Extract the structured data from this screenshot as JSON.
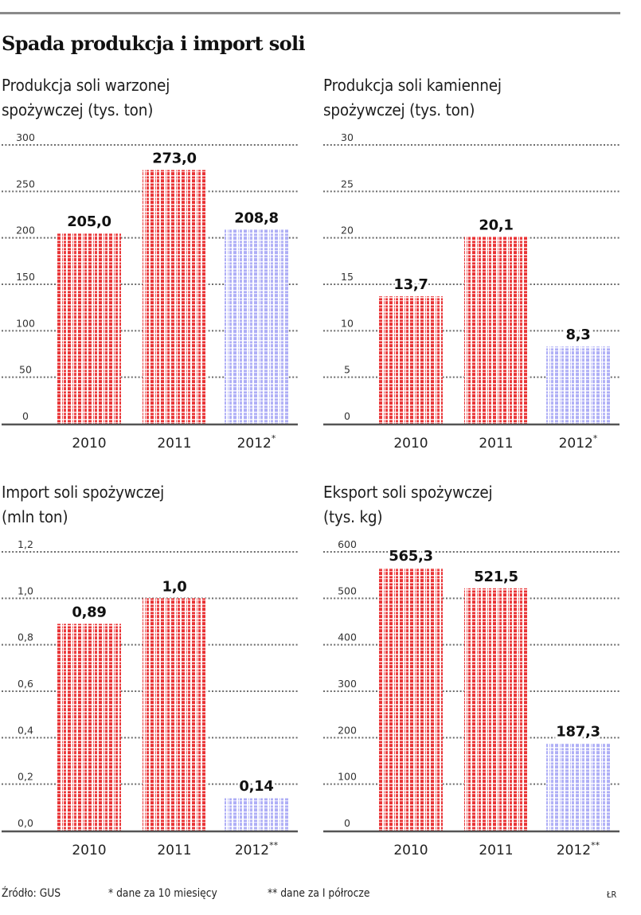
{
  "title": "Spada produkcja i import soli",
  "colors": {
    "bar_full": "#e8282a",
    "bar_partial": "#a9a9f5",
    "grid": "#6b6b6b",
    "axis": "#555555"
  },
  "chart_data": [
    {
      "type": "bar",
      "title": "Produkcja soli warzonej spożywczej (tys. ton)",
      "title_lines": [
        "Produkcja soli warzonej",
        "spożywczej (tys. ton)"
      ],
      "categories": [
        "2010",
        "2011",
        "2012*"
      ],
      "values": [
        205.0,
        273.0,
        208.8
      ],
      "value_labels": [
        "205,0",
        "273,0",
        "208,8"
      ],
      "partial": [
        false,
        false,
        true
      ],
      "yticks": [
        0,
        50,
        100,
        150,
        200,
        250,
        300
      ],
      "ytick_labels": [
        "0",
        "50",
        "100",
        "150",
        "200",
        "250",
        "300"
      ],
      "ylim": [
        0,
        300
      ],
      "grid": true,
      "xlabel": "",
      "ylabel": ""
    },
    {
      "type": "bar",
      "title": "Produkcja soli kamiennej spożywczej (tys. ton)",
      "title_lines": [
        "Produkcja soli kamiennej",
        "spożywczej (tys. ton)"
      ],
      "categories": [
        "2010",
        "2011",
        "2012*"
      ],
      "values": [
        13.7,
        20.1,
        8.3
      ],
      "value_labels": [
        "13,7",
        "20,1",
        "8,3"
      ],
      "partial": [
        false,
        false,
        true
      ],
      "yticks": [
        0,
        5,
        10,
        15,
        20,
        25,
        30
      ],
      "ytick_labels": [
        "0",
        "5",
        "10",
        "15",
        "20",
        "25",
        "30"
      ],
      "ylim": [
        0,
        30
      ],
      "grid": true,
      "xlabel": "",
      "ylabel": ""
    },
    {
      "type": "bar",
      "title": "Import soli spożywczej (mln ton)",
      "title_lines": [
        "Import soli spożywczej",
        "(mln ton)"
      ],
      "categories": [
        "2010",
        "2011",
        "2012**"
      ],
      "values": [
        0.89,
        1.0,
        0.14
      ],
      "value_labels": [
        "0,89",
        "1,0",
        "0,14"
      ],
      "partial": [
        false,
        false,
        true
      ],
      "yticks": [
        0.0,
        0.2,
        0.4,
        0.6,
        0.8,
        1.0,
        1.2
      ],
      "ytick_labels": [
        "0,0",
        "0,2",
        "0,4",
        "0,6",
        "0,8",
        "1,0",
        "1,2"
      ],
      "ylim": [
        0,
        1.2
      ],
      "grid": true,
      "xlabel": "",
      "ylabel": ""
    },
    {
      "type": "bar",
      "title": "Eksport soli spożywczej (tys. kg)",
      "title_lines": [
        "Eksport soli spożywczej",
        "(tys. kg)"
      ],
      "categories": [
        "2010",
        "2011",
        "2012**"
      ],
      "values": [
        565.3,
        521.5,
        187.3
      ],
      "value_labels": [
        "565,3",
        "521,5",
        "187,3"
      ],
      "partial": [
        false,
        false,
        true
      ],
      "yticks": [
        0,
        100,
        200,
        300,
        400,
        500,
        600
      ],
      "ytick_labels": [
        "0",
        "100",
        "200",
        "300",
        "400",
        "500",
        "600"
      ],
      "ylim": [
        0,
        600
      ],
      "grid": true,
      "xlabel": "",
      "ylabel": ""
    }
  ],
  "footer": {
    "source": "Źródło: GUS",
    "note_1": "* dane za 10 miesięcy",
    "note_2": "** dane za I półrocze",
    "credit": "ŁR"
  }
}
